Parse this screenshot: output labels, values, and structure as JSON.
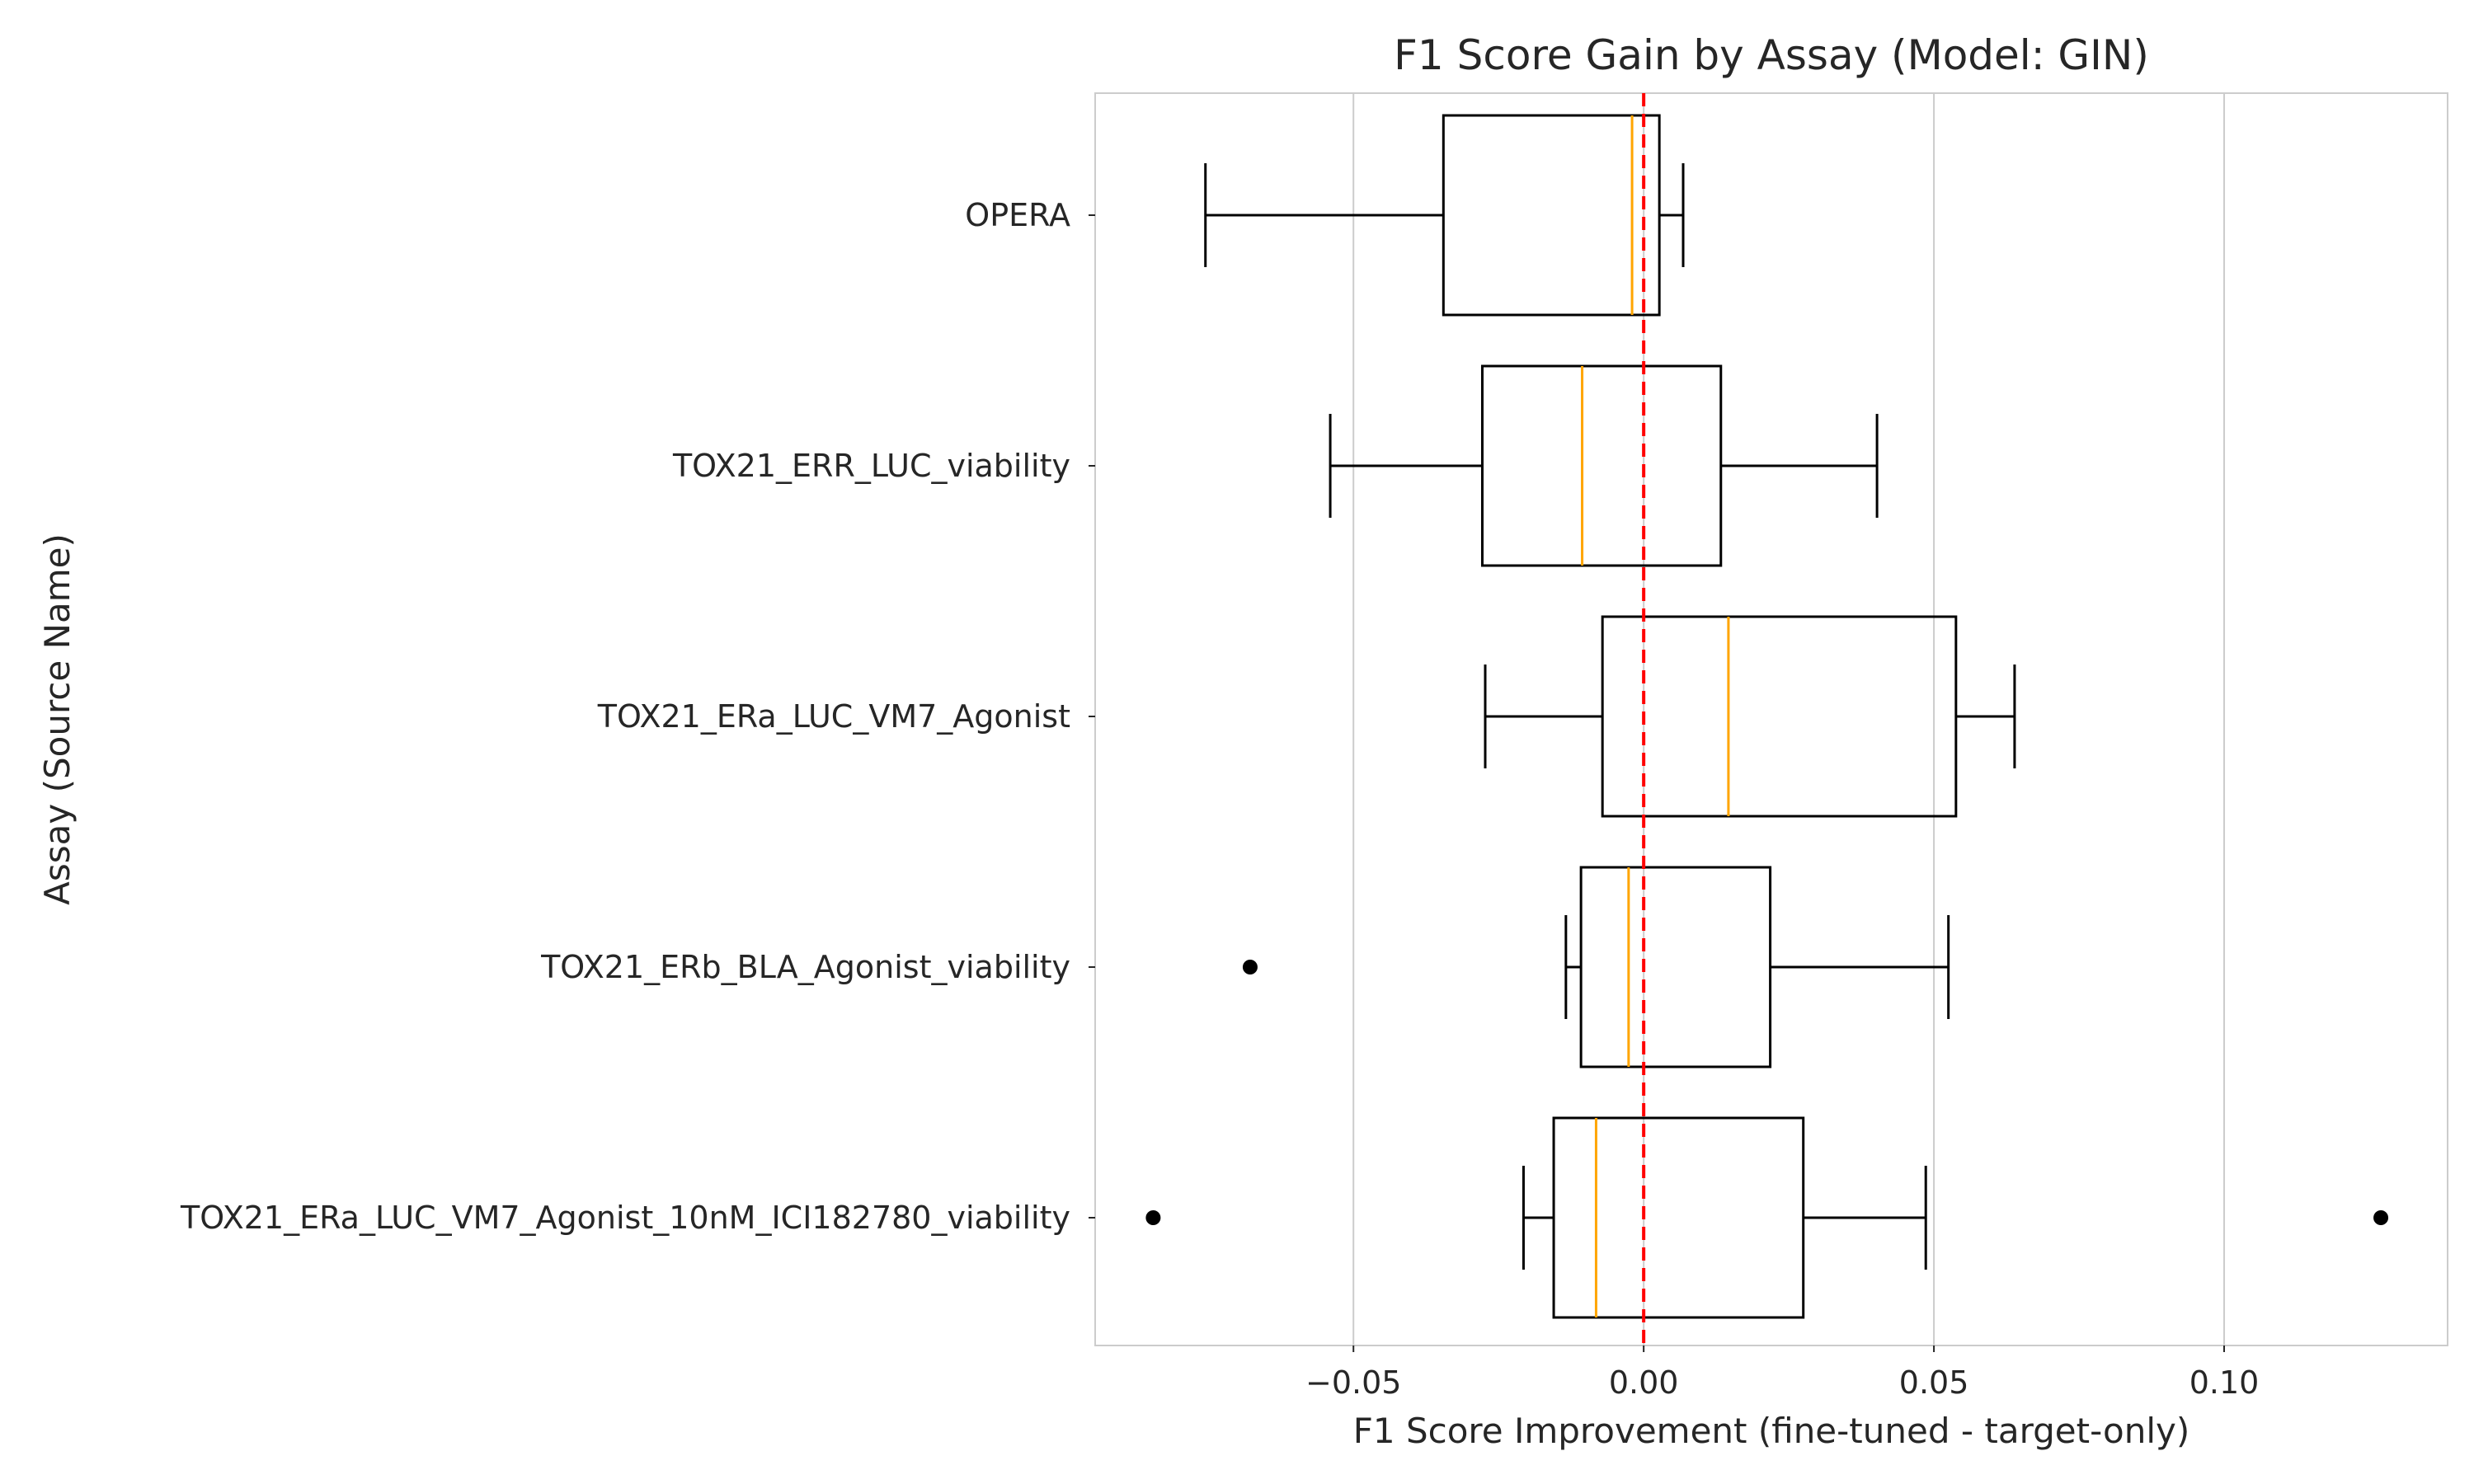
{
  "chart_data": {
    "type": "boxplot",
    "orientation": "horizontal",
    "title": "F1 Score Gain by Assay (Model: GIN)",
    "xlabel": "F1 Score Improvement (fine-tuned - target-only)",
    "ylabel": "Assay (Source Name)",
    "xlim": [
      -0.0945,
      0.1385
    ],
    "xticks": [
      {
        "value": -0.05,
        "label": "−0.05"
      },
      {
        "value": 0.0,
        "label": "0.00"
      },
      {
        "value": 0.05,
        "label": "0.05"
      },
      {
        "value": 0.1,
        "label": "0.10"
      }
    ],
    "grid": "vertical",
    "reference_line": {
      "x": 0.0,
      "color": "#ff0000",
      "style": "dashed"
    },
    "colors": {
      "box": "#000000",
      "median": "#ffa500",
      "grid": "#cccccc",
      "frame": "#cccccc"
    },
    "categories": [
      "OPERA",
      "TOX21_ERR_LUC_viability",
      "TOX21_ERa_LUC_VM7_Agonist",
      "TOX21_ERb_BLA_Agonist_viability",
      "TOX21_ERa_LUC_VM7_Agonist_10nM_ICI182780_viability"
    ],
    "boxes": [
      {
        "category": "OPERA",
        "whisker_low": -0.0755,
        "q1": -0.0345,
        "median": -0.002,
        "q3": 0.0027,
        "whisker_high": 0.0068,
        "outliers": []
      },
      {
        "category": "TOX21_ERR_LUC_viability",
        "whisker_low": -0.054,
        "q1": -0.0278,
        "median": -0.0106,
        "q3": 0.0133,
        "whisker_high": 0.0402,
        "outliers": []
      },
      {
        "category": "TOX21_ERa_LUC_VM7_Agonist",
        "whisker_low": -0.0273,
        "q1": -0.0071,
        "median": 0.0146,
        "q3": 0.0538,
        "whisker_high": 0.0639,
        "outliers": []
      },
      {
        "category": "TOX21_ERb_BLA_Agonist_viability",
        "whisker_low": -0.0134,
        "q1": -0.0108,
        "median": -0.0026,
        "q3": 0.0218,
        "whisker_high": 0.0525,
        "outliers": [
          -0.0678
        ]
      },
      {
        "category": "TOX21_ERa_LUC_VM7_Agonist_10nM_ICI182780_viability",
        "whisker_low": -0.0207,
        "q1": -0.0155,
        "median": -0.0082,
        "q3": 0.0275,
        "whisker_high": 0.0486,
        "outliers": [
          -0.0845,
          0.127
        ]
      }
    ]
  }
}
